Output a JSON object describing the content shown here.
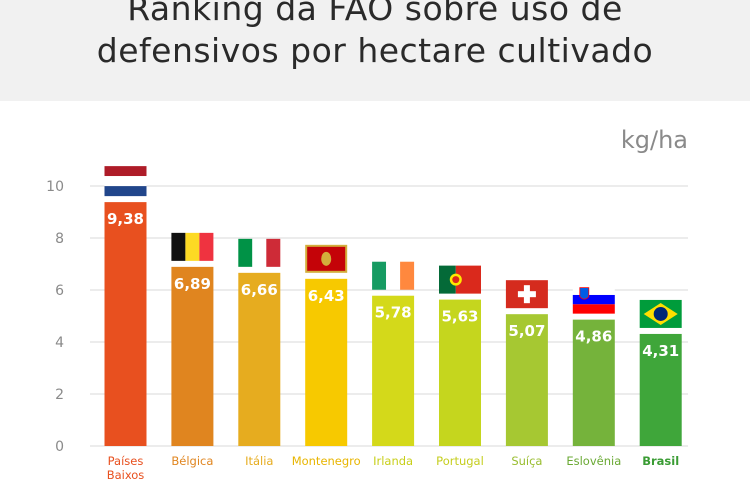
{
  "title": {
    "line1": "Ranking da  FAO sobre uso de",
    "line2": "defensivos por hectare cultivado"
  },
  "unit_label": "kg/ha",
  "colors": {
    "header_bg": "#f1f1f1",
    "grid": "#d9d9d9",
    "axis_text": "#8a8a8a",
    "value_text": "#ffffff"
  },
  "chart_data": {
    "type": "bar",
    "title": "Ranking da  FAO sobre uso de defensivos por hectare cultivado",
    "ylabel": "kg/ha",
    "xlabel": "",
    "ylim": [
      0,
      10
    ],
    "yticks": [
      0,
      2,
      4,
      6,
      8,
      10
    ],
    "grid": true,
    "categories": [
      "Países Baixos",
      "Bélgica",
      "Itália",
      "Montenegro",
      "Irlanda",
      "Portugal",
      "Suíça",
      "Eslovênia",
      "Brasil"
    ],
    "category_lines": [
      [
        "Países",
        "Baixos"
      ],
      [
        "Bélgica"
      ],
      [
        "Itália"
      ],
      [
        "Montenegro"
      ],
      [
        "Irlanda"
      ],
      [
        "Portugal"
      ],
      [
        "Suíça"
      ],
      [
        "Eslovênia"
      ],
      [
        "Brasil"
      ]
    ],
    "values": [
      9.38,
      6.89,
      6.66,
      6.43,
      5.78,
      5.63,
      5.07,
      4.86,
      4.31
    ],
    "value_labels": [
      "9,38",
      "6,89",
      "6,66",
      "6,43",
      "5,78",
      "5,63",
      "5,07",
      "4,86",
      "4,31"
    ],
    "bar_colors": [
      "#e8501f",
      "#e0851f",
      "#e6ac1f",
      "#f7c900",
      "#d4d91a",
      "#c5d61e",
      "#a6c832",
      "#75b33b",
      "#3fa63a"
    ],
    "label_colors": [
      "#e8501f",
      "#e0851f",
      "#e6ac1f",
      "#e8b500",
      "#c8cf1a",
      "#c5ce1e",
      "#99bd2f",
      "#6aa934",
      "#3a9c34"
    ],
    "flags": [
      "netherlands-flag-icon",
      "belgium-flag-icon",
      "italy-flag-icon",
      "montenegro-flag-icon",
      "ireland-flag-icon",
      "portugal-flag-icon",
      "switzerland-flag-icon",
      "slovenia-flag-icon",
      "brazil-flag-icon"
    ]
  }
}
